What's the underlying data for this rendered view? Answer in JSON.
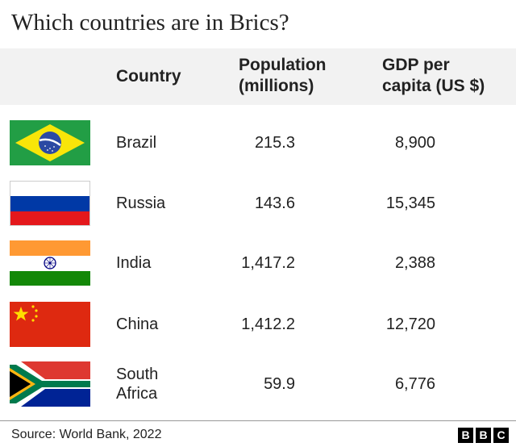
{
  "title": "Which countries are in Brics?",
  "chart_data": {
    "type": "table",
    "columns": [
      "Country",
      "Population\n(millions)",
      "GDP per\ncapita (US $)"
    ],
    "rows": [
      {
        "country": "Brazil",
        "population": "215.3",
        "gdp": "8,900",
        "flag": "brazil-flag-icon"
      },
      {
        "country": "Russia",
        "population": "143.6",
        "gdp": "15,345",
        "flag": "russia-flag-icon"
      },
      {
        "country": "India",
        "population": "1,417.2",
        "gdp": "2,388",
        "flag": "india-flag-icon"
      },
      {
        "country": "China",
        "population": "1,412.2",
        "gdp": "12,720",
        "flag": "china-flag-icon"
      },
      {
        "country": "South\nAfrica",
        "population": "59.9",
        "gdp": "6,776",
        "flag": "south-africa-flag-icon"
      }
    ]
  },
  "header": {
    "country": "Country",
    "population_line1": "Population",
    "population_line2": "(millions)",
    "gdp_line1": "GDP per",
    "gdp_line2": "capita (US $)"
  },
  "source": "Source:  World Bank, 2022",
  "logo": {
    "letters": [
      "B",
      "B",
      "C"
    ]
  },
  "colors": {
    "header_band": "#f2f2f2",
    "brazil_green": "#229e45",
    "brazil_yellow": "#f8e509",
    "brazil_blue": "#2b49a3",
    "russia_blue": "#0039a6",
    "russia_red": "#e4181c",
    "india_saffron": "#ff9933",
    "india_green": "#138808",
    "india_chakra": "#000080",
    "china_red": "#de2910",
    "china_yellow": "#ffde00",
    "sa_green": "#007a4d",
    "sa_red": "#de3831",
    "sa_blue": "#002395",
    "sa_gold": "#ffb612"
  }
}
